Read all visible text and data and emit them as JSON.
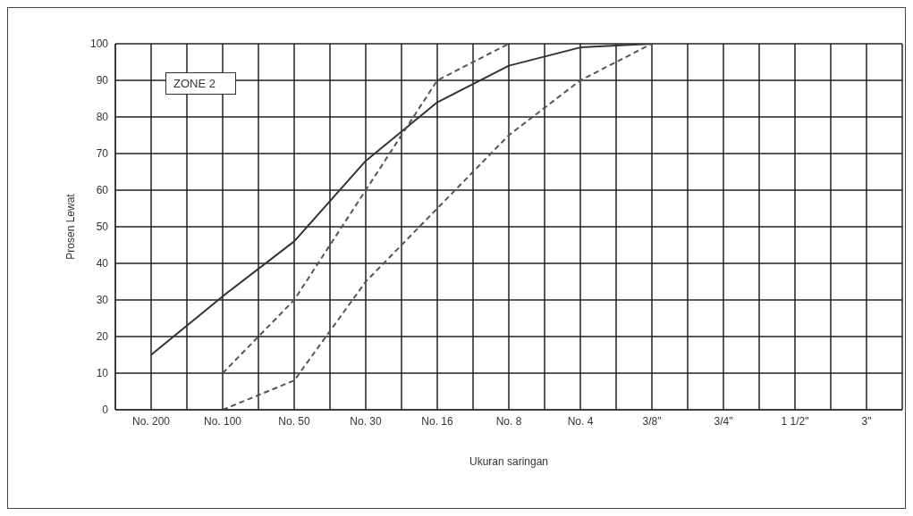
{
  "chart_data": {
    "type": "line",
    "xlabel": "Ukuran saringan",
    "ylabel": "Prosen Lewat",
    "categories": [
      "No. 200",
      "No. 100",
      "No. 50",
      "No. 30",
      "No. 16",
      "No. 8",
      "No. 4",
      "3/8\"",
      "3/4\"",
      "1 1/2\"",
      "3\""
    ],
    "series": [
      {
        "color": "#333333",
        "line_style": "solid",
        "values": [
          15,
          31,
          46,
          68,
          84,
          94,
          99,
          100,
          null,
          null,
          null
        ]
      },
      {
        "color": "#555555",
        "line_style": "dashed",
        "values": [
          null,
          10,
          30,
          60,
          90,
          100,
          null,
          null,
          null,
          null,
          null
        ]
      },
      {
        "color": "#555555",
        "line_style": "dashed",
        "values": [
          null,
          0,
          8,
          35,
          55,
          75,
          90,
          100,
          null,
          null,
          null
        ]
      }
    ],
    "ylim": [
      0,
      100
    ],
    "yticks": [
      0,
      10,
      20,
      30,
      40,
      50,
      60,
      70,
      80,
      90,
      100
    ],
    "grid": true,
    "marker": "none",
    "annotations": [
      "ZONE 2"
    ]
  }
}
